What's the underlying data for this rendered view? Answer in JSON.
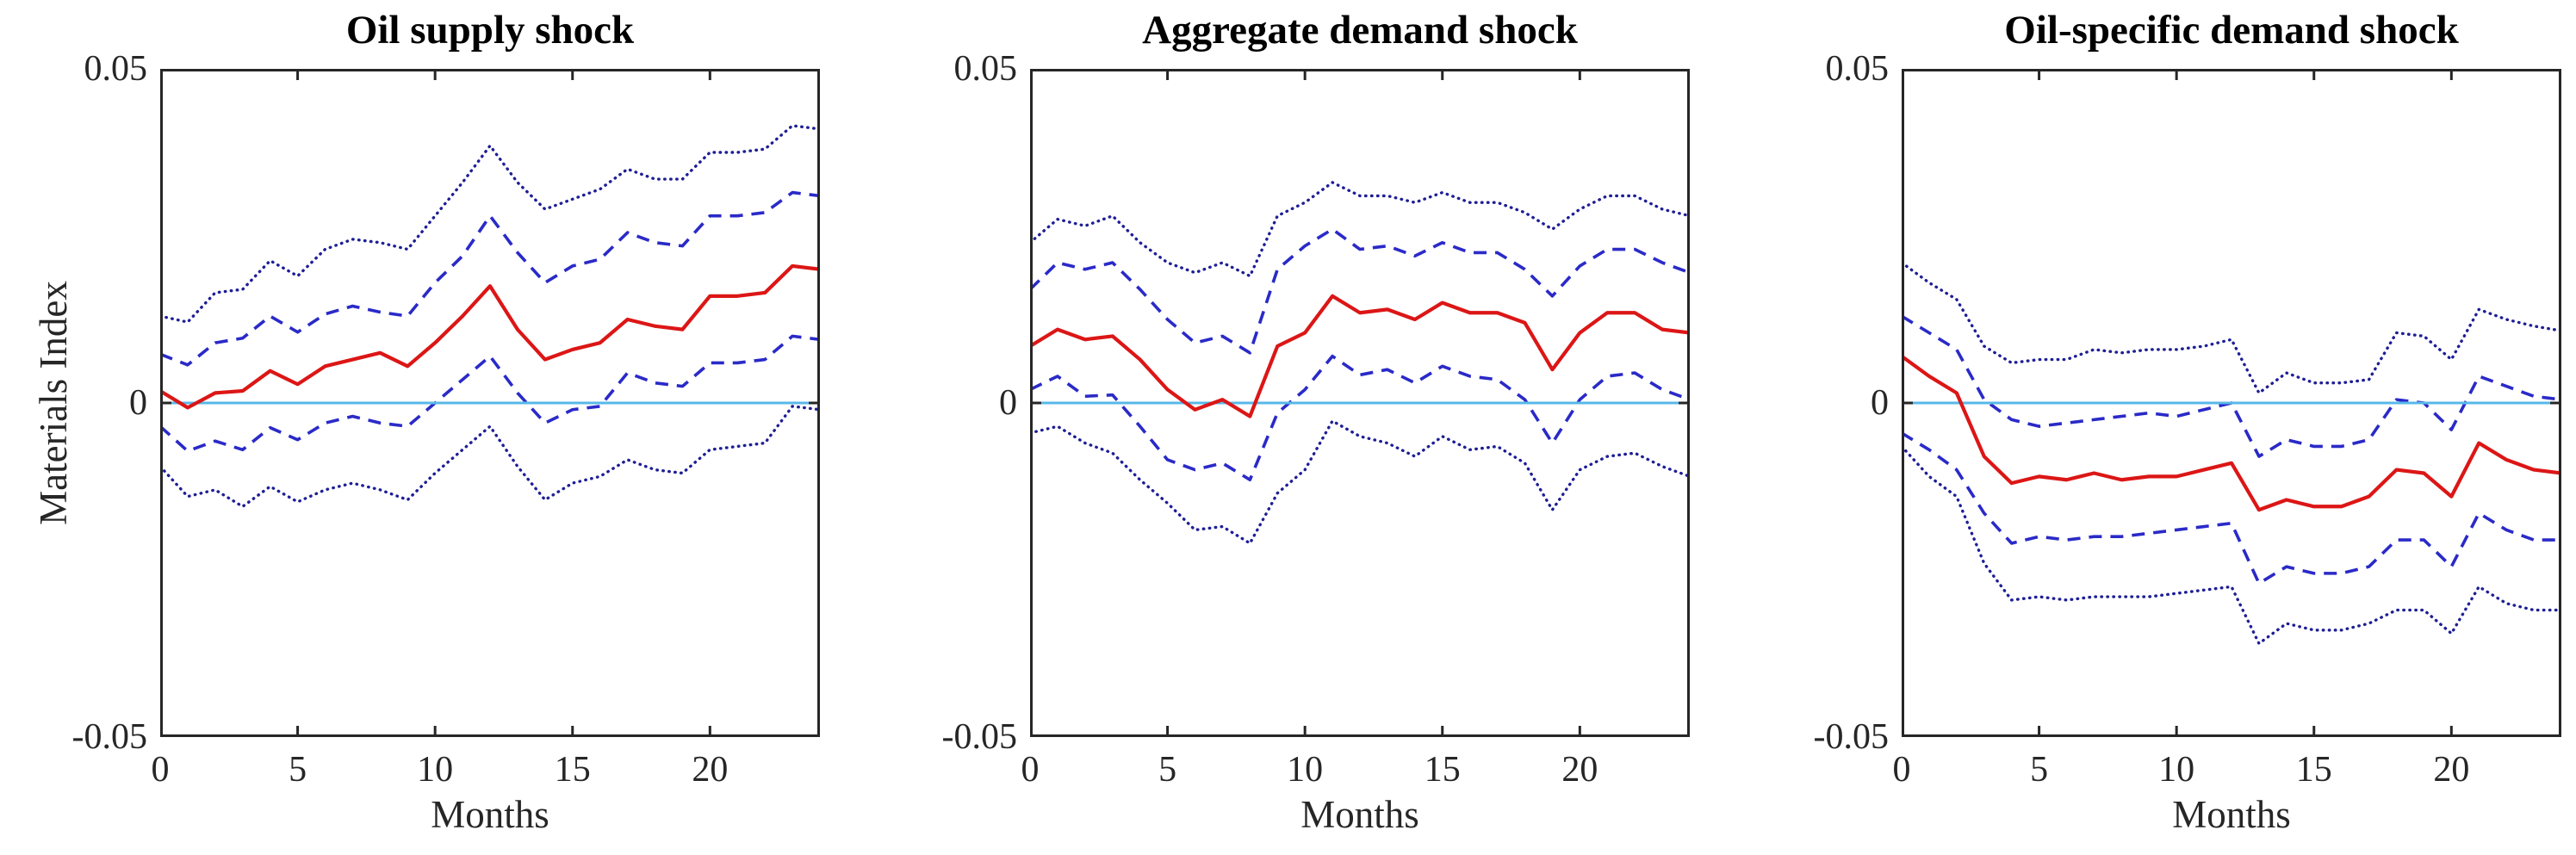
{
  "figure": {
    "background": "#ffffff",
    "axis_color": "#262626",
    "title_color": "#000000",
    "median_color": "#dc1616",
    "inner_band_color": "#2a2ac8",
    "outer_band_color": "#1e1e96",
    "zero_line_color": "#58b8e8"
  },
  "chart_data": [
    {
      "type": "line",
      "title": "Oil supply shock",
      "xlabel": "Months",
      "ylabel": "Materials Index",
      "xlim": [
        0,
        24
      ],
      "ylim": [
        -0.05,
        0.05
      ],
      "grid": false,
      "legend": null,
      "xticks": [
        0,
        5,
        10,
        15,
        20
      ],
      "xtick_labels": [
        "0",
        "5",
        "10",
        "15",
        "20"
      ],
      "yticks": [
        0.05,
        0,
        -0.05
      ],
      "ytick_labels": [
        "0.05",
        "0",
        "-0.05"
      ],
      "x": [
        0,
        1,
        2,
        3,
        4,
        5,
        6,
        7,
        8,
        9,
        10,
        11,
        12,
        13,
        14,
        15,
        16,
        17,
        18,
        19,
        20,
        21,
        22,
        23,
        24
      ],
      "series": [
        {
          "name": "outer-band-upper",
          "line_style": "dotted",
          "color": "#1e1e96",
          "values": [
            0.013,
            0.0121,
            0.0165,
            0.017,
            0.0213,
            0.019,
            0.023,
            0.0245,
            0.024,
            0.023,
            0.028,
            0.033,
            0.0385,
            0.033,
            0.029,
            0.0305,
            0.032,
            0.035,
            0.0335,
            0.0335,
            0.0375,
            0.0375,
            0.038,
            0.0415,
            0.041
          ]
        },
        {
          "name": "inner-band-upper",
          "line_style": "dashed",
          "color": "#2a2ac8",
          "values": [
            0.0073,
            0.0057,
            0.009,
            0.0097,
            0.013,
            0.0106,
            0.0133,
            0.0145,
            0.0136,
            0.013,
            0.018,
            0.022,
            0.028,
            0.0225,
            0.018,
            0.0205,
            0.0215,
            0.0255,
            0.024,
            0.0235,
            0.028,
            0.028,
            0.0285,
            0.0315,
            0.031
          ]
        },
        {
          "name": "inner-band-lower",
          "line_style": "dashed",
          "color": "#2a2ac8",
          "values": [
            -0.0035,
            -0.0072,
            -0.0057,
            -0.007,
            -0.0037,
            -0.0055,
            -0.003,
            -0.002,
            -0.003,
            -0.0035,
            0.0,
            0.0035,
            0.007,
            0.0015,
            -0.003,
            -0.001,
            -0.0005,
            0.0045,
            0.003,
            0.0025,
            0.006,
            0.006,
            0.0065,
            0.01,
            0.0095
          ]
        },
        {
          "name": "outer-band-lower",
          "line_style": "dotted",
          "color": "#1e1e96",
          "values": [
            -0.0095,
            -0.014,
            -0.013,
            -0.0155,
            -0.0125,
            -0.0148,
            -0.013,
            -0.012,
            -0.013,
            -0.0145,
            -0.0105,
            -0.007,
            -0.0035,
            -0.0095,
            -0.0145,
            -0.012,
            -0.011,
            -0.0085,
            -0.01,
            -0.0105,
            -0.007,
            -0.0065,
            -0.006,
            -0.0005,
            -0.001
          ]
        },
        {
          "name": "zero-line",
          "line_style": "solid",
          "color": "#58b8e8",
          "values": [
            0,
            0,
            0,
            0,
            0,
            0,
            0,
            0,
            0,
            0,
            0,
            0,
            0,
            0,
            0,
            0,
            0,
            0,
            0,
            0,
            0,
            0,
            0,
            0,
            0
          ]
        },
        {
          "name": "median-response",
          "line_style": "solid",
          "color": "#dc1616",
          "values": [
            0.0018,
            -0.0007,
            0.0015,
            0.0018,
            0.0048,
            0.0028,
            0.0055,
            0.0065,
            0.0075,
            0.0055,
            0.009,
            0.013,
            0.0175,
            0.011,
            0.0065,
            0.008,
            0.009,
            0.0125,
            0.0115,
            0.011,
            0.016,
            0.016,
            0.0165,
            0.0205,
            0.02
          ]
        }
      ]
    },
    {
      "type": "line",
      "title": "Aggregate demand shock",
      "xlabel": "Months",
      "ylabel": "",
      "xlim": [
        0,
        24
      ],
      "ylim": [
        -0.05,
        0.05
      ],
      "grid": false,
      "legend": null,
      "xticks": [
        0,
        5,
        10,
        15,
        20
      ],
      "xtick_labels": [
        "0",
        "5",
        "10",
        "15",
        "20"
      ],
      "yticks": [
        0.05,
        0,
        -0.05
      ],
      "ytick_labels": [
        "0.05",
        "0",
        "-0.05"
      ],
      "x": [
        0,
        1,
        2,
        3,
        4,
        5,
        6,
        7,
        8,
        9,
        10,
        11,
        12,
        13,
        14,
        15,
        16,
        17,
        18,
        19,
        20,
        21,
        22,
        23,
        24
      ],
      "series": [
        {
          "name": "outer-band-upper",
          "line_style": "dotted",
          "color": "#1e1e96",
          "values": [
            0.024,
            0.0275,
            0.0265,
            0.028,
            0.024,
            0.021,
            0.0195,
            0.021,
            0.019,
            0.028,
            0.03,
            0.033,
            0.031,
            0.031,
            0.03,
            0.0315,
            0.03,
            0.03,
            0.0285,
            0.026,
            0.029,
            0.031,
            0.031,
            0.029,
            0.028
          ]
        },
        {
          "name": "inner-band-upper",
          "line_style": "dashed",
          "color": "#2a2ac8",
          "values": [
            0.017,
            0.021,
            0.02,
            0.021,
            0.017,
            0.0125,
            0.009,
            0.01,
            0.0075,
            0.02,
            0.0235,
            0.026,
            0.023,
            0.0235,
            0.022,
            0.024,
            0.0225,
            0.0225,
            0.02,
            0.016,
            0.0205,
            0.023,
            0.023,
            0.021,
            0.0195
          ]
        },
        {
          "name": "inner-band-lower",
          "line_style": "dashed",
          "color": "#2a2ac8",
          "values": [
            0.002,
            0.004,
            0.001,
            0.0012,
            -0.0035,
            -0.0085,
            -0.01,
            -0.009,
            -0.0115,
            -0.0015,
            0.002,
            0.007,
            0.0042,
            0.005,
            0.003,
            0.0055,
            0.004,
            0.0035,
            0.0005,
            -0.006,
            0.0005,
            0.004,
            0.0045,
            0.002,
            0.0005
          ]
        },
        {
          "name": "outer-band-lower",
          "line_style": "dotted",
          "color": "#1e1e96",
          "values": [
            -0.0045,
            -0.0035,
            -0.006,
            -0.0075,
            -0.0115,
            -0.015,
            -0.019,
            -0.0185,
            -0.021,
            -0.0135,
            -0.01,
            -0.0027,
            -0.005,
            -0.006,
            -0.008,
            -0.005,
            -0.007,
            -0.0065,
            -0.009,
            -0.016,
            -0.01,
            -0.008,
            -0.0075,
            -0.0095,
            -0.011
          ]
        },
        {
          "name": "zero-line",
          "line_style": "solid",
          "color": "#58b8e8",
          "values": [
            0,
            0,
            0,
            0,
            0,
            0,
            0,
            0,
            0,
            0,
            0,
            0,
            0,
            0,
            0,
            0,
            0,
            0,
            0,
            0,
            0,
            0,
            0,
            0,
            0
          ]
        },
        {
          "name": "median-response",
          "line_style": "solid",
          "color": "#dc1616",
          "values": [
            0.0085,
            0.011,
            0.0095,
            0.01,
            0.0065,
            0.002,
            -0.001,
            0.0005,
            -0.002,
            0.0085,
            0.0105,
            0.016,
            0.0135,
            0.014,
            0.0125,
            0.015,
            0.0135,
            0.0135,
            0.012,
            0.005,
            0.0105,
            0.0135,
            0.0135,
            0.011,
            0.0105
          ]
        }
      ]
    },
    {
      "type": "line",
      "title": "Oil-specific demand shock",
      "xlabel": "Months",
      "ylabel": "",
      "xlim": [
        0,
        24
      ],
      "ylim": [
        -0.05,
        0.05
      ],
      "grid": false,
      "legend": null,
      "xticks": [
        0,
        5,
        10,
        15,
        20
      ],
      "xtick_labels": [
        "0",
        "5",
        "10",
        "15",
        "20"
      ],
      "yticks": [
        0.05,
        0,
        -0.05
      ],
      "ytick_labels": [
        "0.05",
        "0",
        "-0.05"
      ],
      "x": [
        0,
        1,
        2,
        3,
        4,
        5,
        6,
        7,
        8,
        9,
        10,
        11,
        12,
        13,
        14,
        15,
        16,
        17,
        18,
        19,
        20,
        21,
        22,
        23,
        24
      ],
      "series": [
        {
          "name": "outer-band-upper",
          "line_style": "dotted",
          "color": "#1e1e96",
          "values": [
            0.021,
            0.018,
            0.0155,
            0.0085,
            0.006,
            0.0065,
            0.0065,
            0.008,
            0.0075,
            0.008,
            0.008,
            0.0085,
            0.0095,
            0.0015,
            0.0045,
            0.003,
            0.003,
            0.0035,
            0.0105,
            0.01,
            0.0065,
            0.014,
            0.0125,
            0.0115,
            0.0108
          ]
        },
        {
          "name": "inner-band-upper",
          "line_style": "dashed",
          "color": "#2a2ac8",
          "values": [
            0.013,
            0.0105,
            0.008,
            0.0005,
            -0.0025,
            -0.0035,
            -0.003,
            -0.0025,
            -0.002,
            -0.0015,
            -0.002,
            -0.001,
            0.0,
            -0.008,
            -0.0055,
            -0.0065,
            -0.0065,
            -0.0055,
            0.0005,
            0.0,
            -0.004,
            0.004,
            0.0025,
            0.001,
            0.0005
          ]
        },
        {
          "name": "inner-band-lower",
          "line_style": "dashed",
          "color": "#2a2ac8",
          "values": [
            -0.0045,
            -0.007,
            -0.01,
            -0.0165,
            -0.021,
            -0.02,
            -0.0205,
            -0.02,
            -0.02,
            -0.0195,
            -0.019,
            -0.0185,
            -0.018,
            -0.027,
            -0.0245,
            -0.0255,
            -0.0255,
            -0.0245,
            -0.0205,
            -0.0205,
            -0.0245,
            -0.0165,
            -0.019,
            -0.0205,
            -0.0205
          ]
        },
        {
          "name": "outer-band-lower",
          "line_style": "dotted",
          "color": "#1e1e96",
          "values": [
            -0.0065,
            -0.011,
            -0.014,
            -0.024,
            -0.0295,
            -0.029,
            -0.0295,
            -0.029,
            -0.029,
            -0.029,
            -0.0285,
            -0.028,
            -0.0275,
            -0.036,
            -0.033,
            -0.034,
            -0.034,
            -0.033,
            -0.031,
            -0.031,
            -0.0345,
            -0.0275,
            -0.03,
            -0.031,
            -0.031
          ]
        },
        {
          "name": "zero-line",
          "line_style": "solid",
          "color": "#58b8e8",
          "values": [
            0,
            0,
            0,
            0,
            0,
            0,
            0,
            0,
            0,
            0,
            0,
            0,
            0,
            0,
            0,
            0,
            0,
            0,
            0,
            0,
            0,
            0,
            0,
            0,
            0
          ]
        },
        {
          "name": "median-response",
          "line_style": "solid",
          "color": "#dc1616",
          "values": [
            0.007,
            0.004,
            0.0015,
            -0.008,
            -0.012,
            -0.011,
            -0.0115,
            -0.0105,
            -0.0115,
            -0.011,
            -0.011,
            -0.01,
            -0.009,
            -0.016,
            -0.0145,
            -0.0155,
            -0.0155,
            -0.014,
            -0.01,
            -0.0105,
            -0.014,
            -0.006,
            -0.0085,
            -0.01,
            -0.0105
          ]
        }
      ]
    }
  ]
}
